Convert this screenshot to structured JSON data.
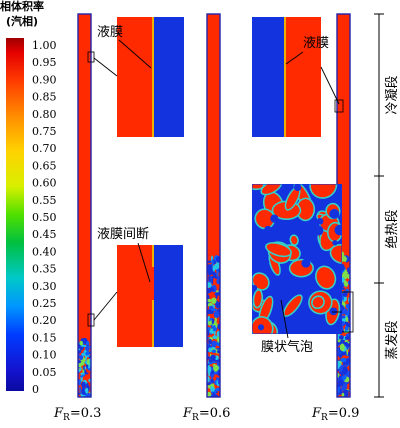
{
  "legend": {
    "title_line1": "相体积率",
    "title_line2": "(汽相)",
    "ticks": [
      "1.00",
      "0.95",
      "0.90",
      "0.85",
      "0.80",
      "0.75",
      "0.70",
      "0.65",
      "0.60",
      "0.55",
      "0.50",
      "0.45",
      "0.40",
      "0.35",
      "0.30",
      "0.25",
      "0.20",
      "0.15",
      "0.10",
      "0.05",
      "0"
    ]
  },
  "sections": {
    "condensation": "冷凝段",
    "adiabatic": "绝热段",
    "evaporation": "蒸发段"
  },
  "annotations": {
    "liquid_film_1": "液膜",
    "liquid_film_2": "液膜",
    "film_break": "液膜间断",
    "film_bubble": "膜状气泡"
  },
  "cases": [
    {
      "prefix": "F",
      "sub": "R",
      "value": "=0.3"
    },
    {
      "prefix": "F",
      "sub": "R",
      "value": "=0.6"
    },
    {
      "prefix": "F",
      "sub": "R",
      "value": "=0.9"
    }
  ],
  "colors": {
    "liquid": "#ff2a00",
    "vapor": "#1233dd",
    "tube_border": "#2222aa",
    "line": "#000000"
  }
}
